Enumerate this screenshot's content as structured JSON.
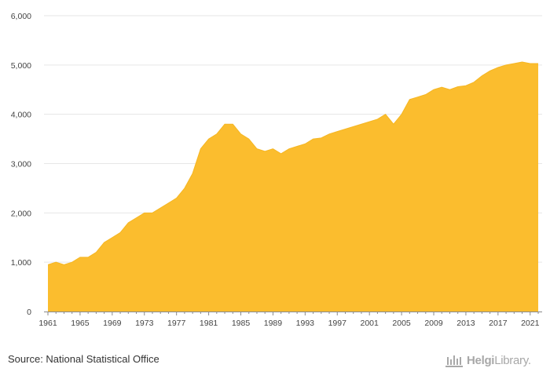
{
  "chart_data": {
    "type": "area",
    "title": "",
    "xlabel": "",
    "ylabel": "",
    "color": "#FBBD2E",
    "grid": true,
    "ylim": [
      0,
      6000
    ],
    "xlim": [
      1961,
      2022
    ],
    "y_ticks": [
      {
        "value": 0,
        "label": "0"
      },
      {
        "value": 1000,
        "label": "1,000"
      },
      {
        "value": 2000,
        "label": "2,000"
      },
      {
        "value": 3000,
        "label": "3,000"
      },
      {
        "value": 4000,
        "label": "4,000"
      },
      {
        "value": 5000,
        "label": "5,000"
      },
      {
        "value": 6000,
        "label": "6,000"
      }
    ],
    "x_ticks": [
      1961,
      1965,
      1969,
      1973,
      1977,
      1981,
      1985,
      1989,
      1993,
      1997,
      2001,
      2005,
      2009,
      2013,
      2017,
      2021
    ],
    "x": [
      1961,
      1962,
      1963,
      1964,
      1965,
      1966,
      1967,
      1968,
      1969,
      1970,
      1971,
      1972,
      1973,
      1974,
      1975,
      1976,
      1977,
      1978,
      1979,
      1980,
      1981,
      1982,
      1983,
      1984,
      1985,
      1986,
      1987,
      1988,
      1989,
      1990,
      1991,
      1992,
      1993,
      1994,
      1995,
      1996,
      1997,
      1998,
      1999,
      2000,
      2001,
      2002,
      2003,
      2004,
      2005,
      2006,
      2007,
      2008,
      2009,
      2010,
      2011,
      2012,
      2013,
      2014,
      2015,
      2016,
      2017,
      2018,
      2019,
      2020,
      2021,
      2022
    ],
    "values": [
      950,
      1000,
      950,
      1000,
      1100,
      1100,
      1200,
      1400,
      1500,
      1600,
      1800,
      1900,
      2000,
      2000,
      2100,
      2200,
      2300,
      2500,
      2800,
      3300,
      3500,
      3600,
      3800,
      3800,
      3600,
      3500,
      3300,
      3250,
      3300,
      3200,
      3300,
      3350,
      3400,
      3500,
      3520,
      3600,
      3650,
      3700,
      3750,
      3800,
      3850,
      3900,
      4000,
      3800,
      4000,
      4300,
      4350,
      4400,
      4500,
      4550,
      4500,
      4560,
      4580,
      4650,
      4780,
      4880,
      4950,
      5000,
      5030,
      5060,
      5030,
      5030
    ]
  },
  "footer": {
    "source": "Source: National Statistical Office",
    "logo_bold": "Helgi",
    "logo_light": "Library."
  }
}
